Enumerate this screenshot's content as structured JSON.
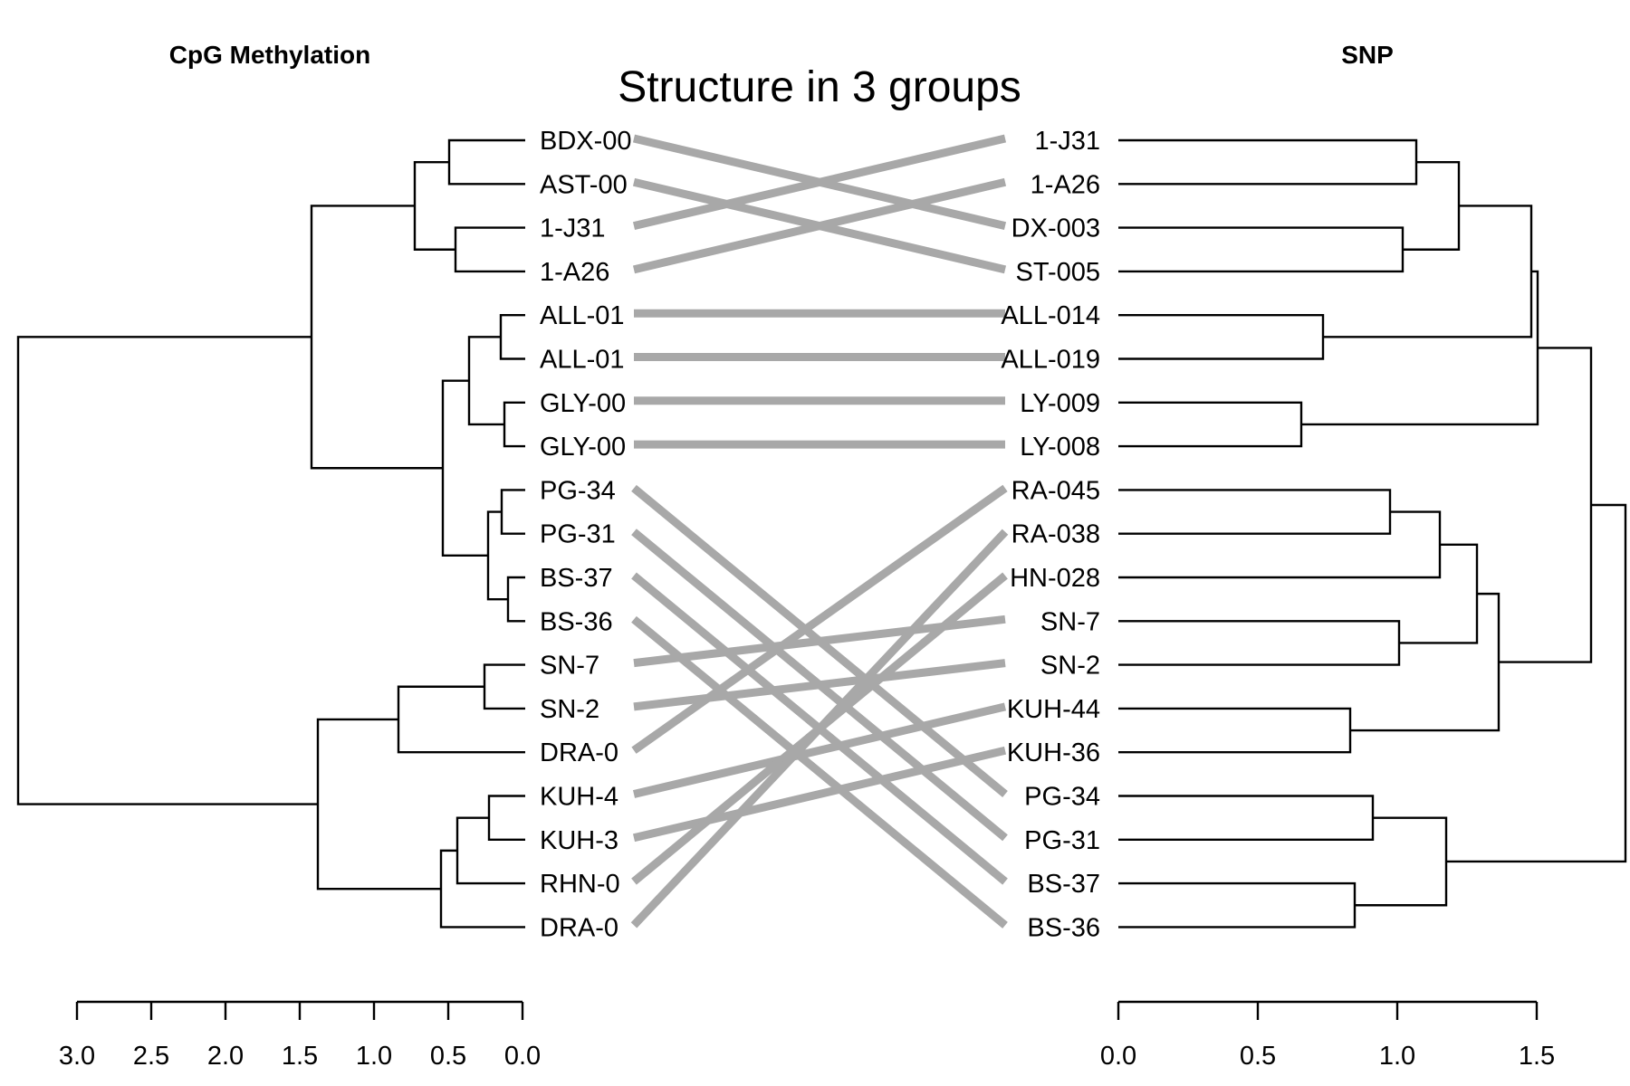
{
  "title": "Structure in 3 groups",
  "left_panel": {
    "title": "CpG Methylation",
    "labels": [
      "BDX-00",
      "AST-00",
      "1-J31",
      "1-A26",
      "ALL-01",
      "ALL-01",
      "GLY-00",
      "GLY-00",
      "PG-34",
      "PG-31",
      "BS-37",
      "BS-36",
      "SN-7",
      "SN-2",
      "DRA-0",
      "KUH-4",
      "KUH-3",
      "RHN-0",
      "DRA-0"
    ],
    "axis_ticks": [
      "3.0",
      "2.5",
      "2.0",
      "1.5",
      "1.0",
      "0.5",
      "0.0"
    ]
  },
  "right_panel": {
    "title": "SNP",
    "labels": [
      "1-J31",
      "1-A26",
      "DX-003",
      "ST-005",
      "ALL-014",
      "ALL-019",
      "LY-009",
      "LY-008",
      "RA-045",
      "RA-038",
      "HN-028",
      "SN-7",
      "SN-2",
      "KUH-44",
      "KUH-36",
      "PG-34",
      "PG-31",
      "BS-37",
      "BS-36"
    ],
    "axis_ticks": [
      "0.0",
      "0.5",
      "1.0",
      "1.5"
    ]
  },
  "connections": [
    [
      0,
      2
    ],
    [
      1,
      3
    ],
    [
      2,
      0
    ],
    [
      3,
      1
    ],
    [
      4,
      4
    ],
    [
      5,
      5
    ],
    [
      6,
      6
    ],
    [
      7,
      7
    ],
    [
      8,
      15
    ],
    [
      9,
      16
    ],
    [
      10,
      17
    ],
    [
      11,
      18
    ],
    [
      12,
      11
    ],
    [
      13,
      12
    ],
    [
      14,
      8
    ],
    [
      15,
      13
    ],
    [
      16,
      14
    ],
    [
      17,
      10
    ],
    [
      18,
      9
    ]
  ],
  "left_tree": {
    "branches": [
      {
        "left_height": 0.5,
        "right_height": 0.5,
        "merge": 0.49,
        "left": 0,
        "right": 1
      },
      {
        "left_height": 0.45,
        "right_height": 0.45,
        "merge": 0.45,
        "left": 2,
        "right": 3
      },
      {
        "merge": 0.72,
        "left": "A",
        "right": "B"
      },
      {
        "merge": 0.15,
        "left": 4,
        "right": 5
      },
      {
        "merge": 0.13,
        "left": 6,
        "right": 7
      },
      {
        "merge": 0.37,
        "left": "C",
        "right": "D"
      },
      {
        "merge": 0.13,
        "left": 8,
        "right": 9
      },
      {
        "merge": 0.09,
        "left": 10,
        "right": 11
      },
      {
        "merge": 0.23,
        "left": "E",
        "right": "F"
      },
      {
        "merge": 0.53,
        "left": "G",
        "right": "H"
      },
      {
        "merge": 1.42,
        "left": "I",
        "right": "J"
      }
    ]
  }
}
